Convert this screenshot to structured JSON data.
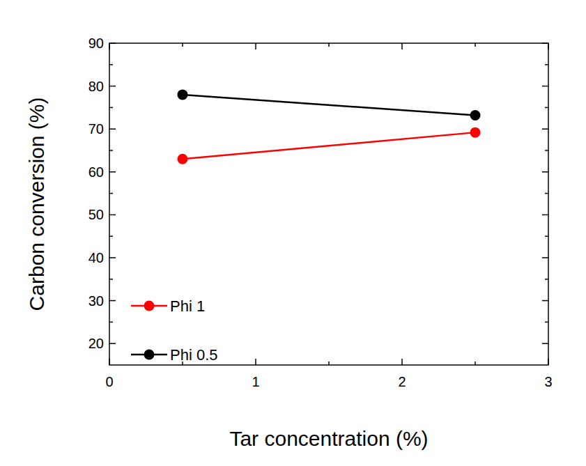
{
  "chart_data": {
    "type": "line",
    "x_label": "Tar concentration (%)",
    "y_label": "Carbon conversion (%)",
    "xlim": [
      0,
      3
    ],
    "xticks": [
      0,
      1,
      2,
      3
    ],
    "ylim": [
      15,
      90
    ],
    "yticks": [
      20,
      30,
      40,
      50,
      60,
      70,
      80,
      90
    ],
    "grid": false,
    "legend": "lower left",
    "series": [
      {
        "name": "Phi 1",
        "color": "#ff0000",
        "marker": "circle",
        "x": [
          0.5,
          2.5
        ],
        "values": [
          63,
          69.2
        ]
      },
      {
        "name": "Phi 0.5",
        "color": "#000000",
        "marker": "circle",
        "x": [
          0.5,
          2.5
        ],
        "values": [
          78,
          73.2
        ]
      }
    ]
  }
}
